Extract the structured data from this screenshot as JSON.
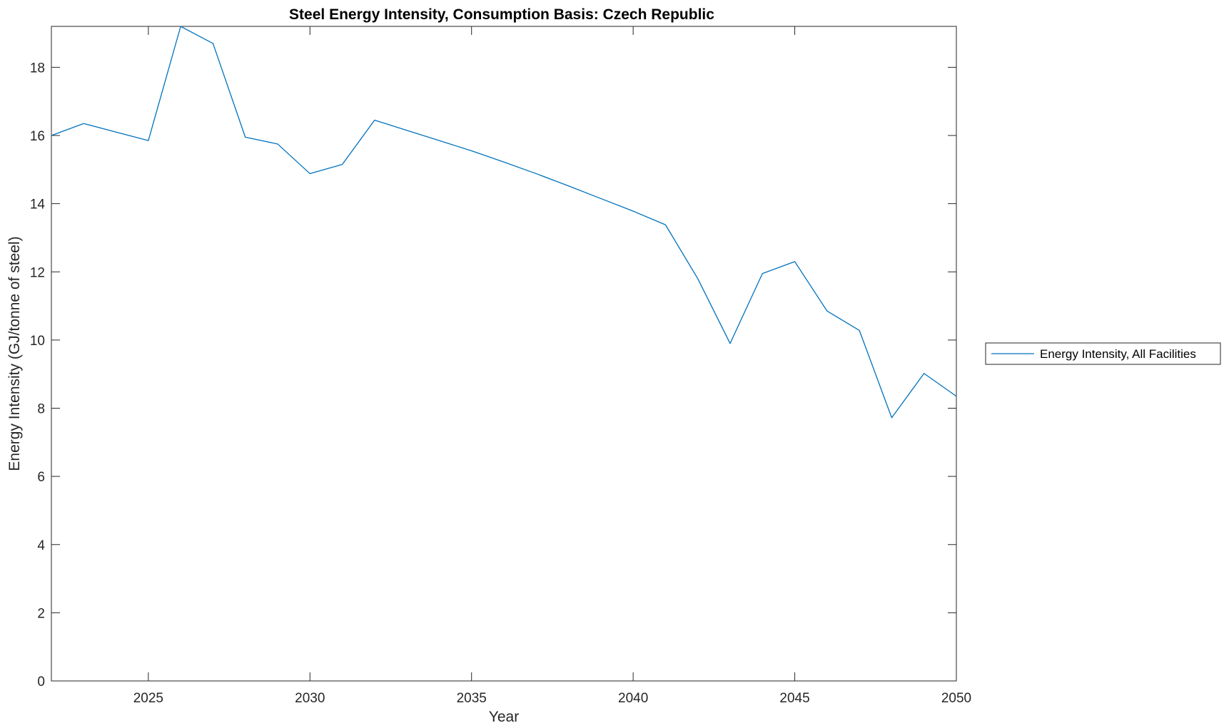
{
  "chart_data": {
    "type": "line",
    "title": "Steel Energy Intensity, Consumption Basis: Czech Republic",
    "xlabel": "Year",
    "ylabel": "Energy Intensity (GJ/tonne of steel)",
    "xlim": [
      2022,
      2050
    ],
    "ylim": [
      0,
      19.2
    ],
    "xticks": [
      2025,
      2030,
      2035,
      2040,
      2045,
      2050
    ],
    "yticks": [
      0,
      2,
      4,
      6,
      8,
      10,
      12,
      14,
      16,
      18
    ],
    "grid": false,
    "legend_position": "outside-right",
    "series": [
      {
        "name": "Energy Intensity, All Facilities",
        "color": "#0072BD",
        "x": [
          2022,
          2023,
          2024,
          2025,
          2026,
          2027,
          2028,
          2029,
          2030,
          2031,
          2032,
          2033,
          2034,
          2035,
          2036,
          2037,
          2038,
          2039,
          2040,
          2041,
          2042,
          2043,
          2044,
          2045,
          2046,
          2047,
          2048,
          2049,
          2050
        ],
        "y": [
          16.0,
          16.35,
          16.1,
          15.85,
          19.2,
          18.7,
          15.95,
          15.75,
          14.88,
          15.15,
          16.45,
          16.15,
          15.85,
          15.55,
          15.22,
          14.88,
          14.52,
          14.15,
          13.78,
          13.38,
          11.8,
          9.9,
          11.95,
          12.3,
          10.85,
          10.28,
          7.72,
          9.02,
          8.35
        ]
      }
    ]
  }
}
